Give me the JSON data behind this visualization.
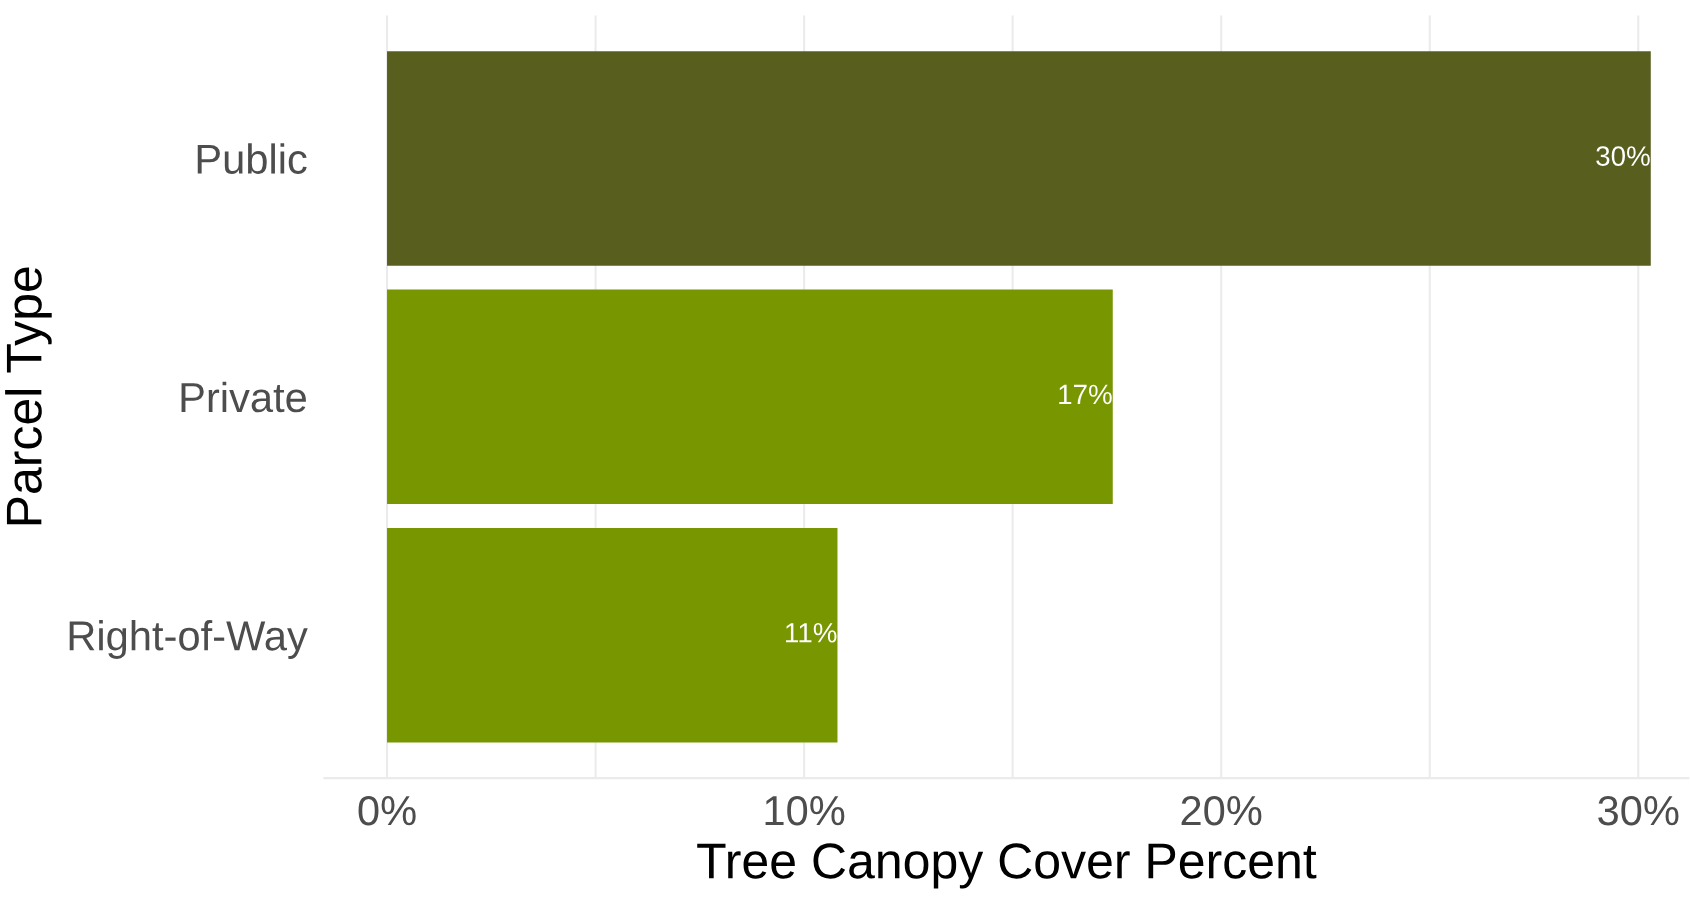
{
  "chart_data": {
    "type": "bar",
    "orientation": "horizontal",
    "categories": [
      "Public",
      "Private",
      "Right-of-Way"
    ],
    "values": [
      30.3,
      17.4,
      10.8
    ],
    "colors": [
      "#585f1e",
      "#779600",
      "#779600"
    ],
    "value_labels": [
      "30%",
      "17%",
      "11%"
    ],
    "xlabel": "Tree Canopy Cover Percent",
    "ylabel": "Parcel Type",
    "xlim": [
      -1.5,
      31.2
    ],
    "xticks": [
      {
        "value": 0,
        "label": "0%"
      },
      {
        "value": 5,
        "label": null
      },
      {
        "value": 10,
        "label": "10%"
      },
      {
        "value": 15,
        "label": null
      },
      {
        "value": 20,
        "label": "20%"
      },
      {
        "value": 25,
        "label": null
      },
      {
        "value": 30,
        "label": "30%"
      }
    ],
    "grid": "x",
    "legend": false
  }
}
